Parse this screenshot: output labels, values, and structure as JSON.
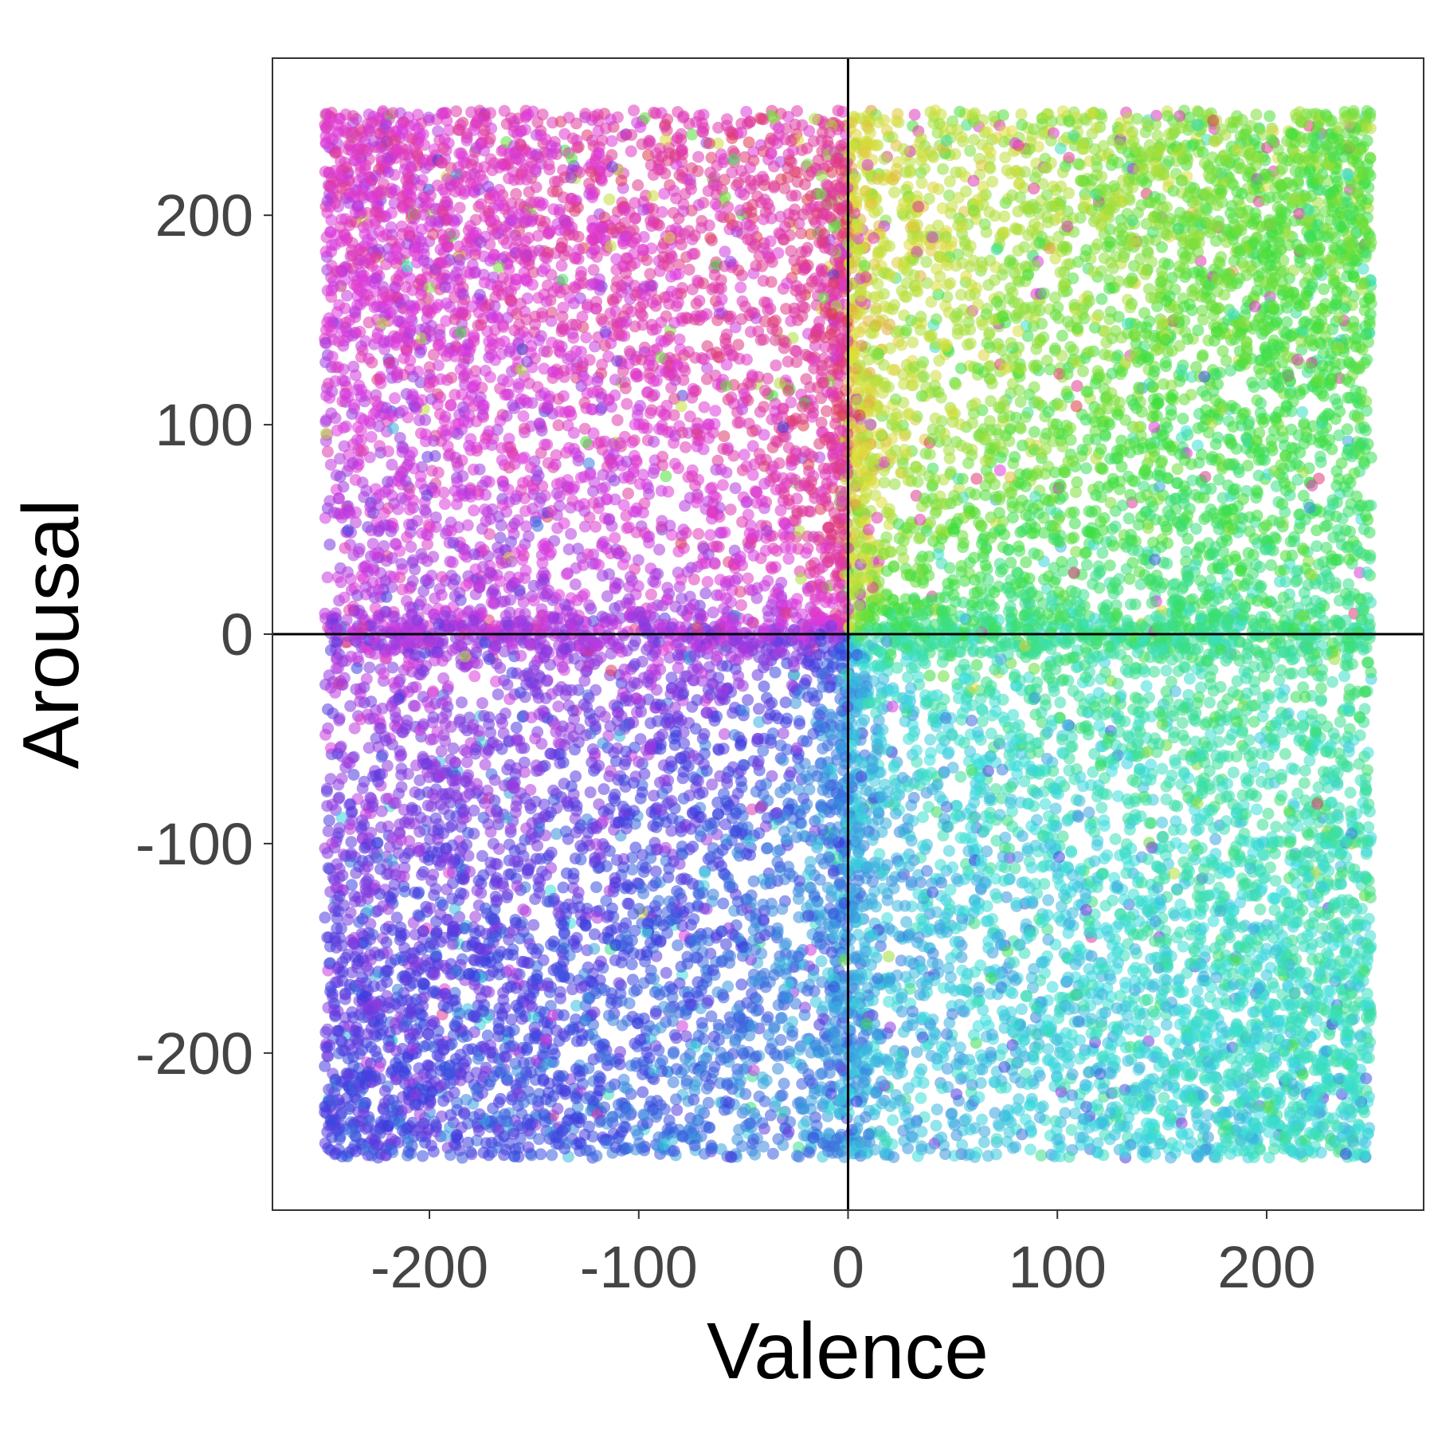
{
  "chart_data": {
    "type": "scatter",
    "title": "",
    "xlabel": "Valence",
    "ylabel": "Arousal",
    "xlim": [
      -275,
      275
    ],
    "ylim": [
      -275,
      275
    ],
    "x_ticks": [
      -200,
      -100,
      0,
      100,
      200
    ],
    "y_ticks": [
      -200,
      -100,
      0,
      100,
      200
    ],
    "x_tick_labels": [
      "-200",
      "-100",
      "0",
      "100",
      "200"
    ],
    "y_tick_labels": [
      "-200",
      "-100",
      "0",
      "100",
      "200"
    ],
    "grid": false,
    "legend": "none",
    "reference_lines": {
      "x": 0,
      "y": 0
    },
    "point_alpha": 0.55,
    "point_count_estimate": 16000,
    "data_range": {
      "x": [
        -250,
        250
      ],
      "y": [
        -250,
        250
      ]
    },
    "color_by": "angle in the valence–arousal plane (hue wheel)",
    "dominant_colors": {
      "upper_left": "#ff3fb5",
      "upper_right_top": "#d9801f",
      "upper_right": "#7fa800",
      "right_center": "#2db82d",
      "lower_right": "#1fb96e",
      "lower_center": "#12b5b0",
      "lower_left": "#29a8f5",
      "left_center": "#c35cf5"
    }
  }
}
